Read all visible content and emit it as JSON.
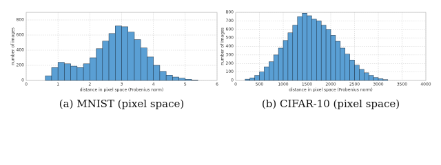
{
  "chart_data": [
    {
      "type": "histogram",
      "caption": "(a) MNIST (pixel space)",
      "xlabel": "distance in pixel space (Frobenius norm)",
      "ylabel": "number of images",
      "color": "#5a9fd4",
      "grid": true,
      "bins": [
        0.6,
        0.8,
        1.0,
        1.2,
        1.4,
        1.6,
        1.8,
        2.0,
        2.2,
        2.4,
        2.6,
        2.8,
        3.0,
        3.2,
        3.4,
        3.6,
        3.8,
        4.0,
        4.2,
        4.4,
        4.6,
        4.8,
        5.0,
        5.2,
        5.4
      ],
      "values": [
        60,
        170,
        240,
        220,
        190,
        170,
        220,
        300,
        420,
        520,
        620,
        720,
        710,
        640,
        540,
        430,
        310,
        200,
        120,
        70,
        45,
        30,
        15,
        5
      ],
      "xlim": [
        0,
        6
      ],
      "xticks": [
        0,
        1,
        2,
        3,
        4,
        5,
        6
      ],
      "ylim": [
        0,
        900
      ],
      "yticks": [
        0,
        200,
        400,
        600,
        800
      ]
    },
    {
      "type": "histogram",
      "caption": "(b) CIFAR-10 (pixel space)",
      "xlabel": "distance in pixel space (Frobenius norm)",
      "ylabel": "number of images",
      "color": "#5a9fd4",
      "grid": true,
      "bins": [
        200,
        300,
        400,
        500,
        600,
        700,
        800,
        900,
        1000,
        1100,
        1200,
        1300,
        1400,
        1500,
        1600,
        1700,
        1800,
        1900,
        2000,
        2100,
        2200,
        2300,
        2400,
        2500,
        2600,
        2700,
        2800,
        2900,
        3000,
        3100,
        3200
      ],
      "values": [
        15,
        30,
        60,
        100,
        160,
        220,
        300,
        380,
        470,
        560,
        650,
        750,
        790,
        760,
        720,
        700,
        650,
        600,
        530,
        460,
        380,
        310,
        240,
        180,
        130,
        90,
        60,
        35,
        20,
        10
      ],
      "xlim": [
        0,
        4000
      ],
      "xticks": [
        0,
        500,
        1000,
        1500,
        2000,
        2500,
        3000,
        3500,
        4000
      ],
      "ylim": [
        0,
        800
      ],
      "yticks": [
        0,
        100,
        200,
        300,
        400,
        500,
        600,
        700,
        800
      ]
    }
  ]
}
